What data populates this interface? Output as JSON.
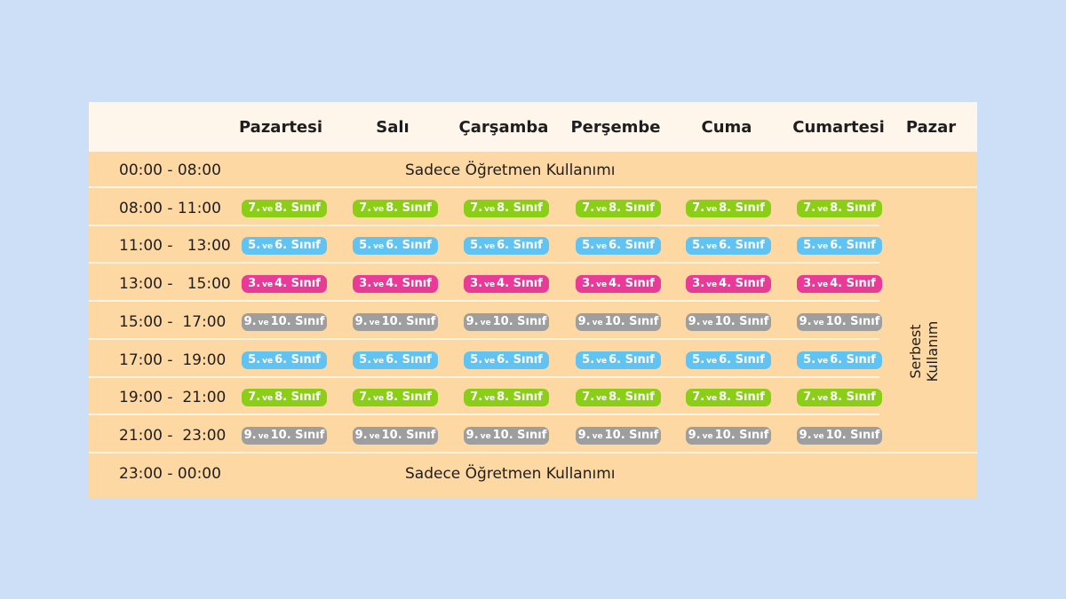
{
  "days": [
    "Pazartesi",
    "Salı",
    "Çarşamba",
    "Perşembe",
    "Cuma",
    "Cumartesi",
    "Pazar"
  ],
  "rows": [
    {
      "time": "00:00 - 08:00",
      "note": "Sadece Öğretmen Kullanımı"
    },
    {
      "time": "08:00 - 11:00",
      "class": {
        "pre": "7.",
        "ve": "ve",
        "post": "8. Sınıf"
      },
      "color": "green"
    },
    {
      "time": "11:00 -   13:00",
      "class": {
        "pre": "5.",
        "ve": "ve",
        "post": "6. Sınıf"
      },
      "color": "blue"
    },
    {
      "time": "13:00 -   15:00",
      "class": {
        "pre": "3.",
        "ve": "ve",
        "post": "4. Sınıf"
      },
      "color": "pink"
    },
    {
      "time": "15:00 -  17:00",
      "class": {
        "pre": "9.",
        "ve": "ve",
        "post": "10. Sınıf"
      },
      "color": "gray"
    },
    {
      "time": "17:00 -  19:00",
      "class": {
        "pre": "5.",
        "ve": "ve",
        "post": "6. Sınıf"
      },
      "color": "blue"
    },
    {
      "time": "19:00 -  21:00",
      "class": {
        "pre": "7.",
        "ve": "ve",
        "post": "8. Sınıf"
      },
      "color": "green"
    },
    {
      "time": "21:00 -  23:00",
      "class": {
        "pre": "9.",
        "ve": "ve",
        "post": "10. Sınıf"
      },
      "color": "gray"
    },
    {
      "time": "23:00 - 00:00",
      "note": "Sadece Öğretmen Kullanımı"
    }
  ],
  "sunday_note": {
    "line1": "Serbest",
    "line2": "Kullanım"
  },
  "colors": {
    "green": "#8bce18",
    "blue": "#60c3f2",
    "pink": "#ea3a97",
    "gray": "#9e9e9e"
  }
}
